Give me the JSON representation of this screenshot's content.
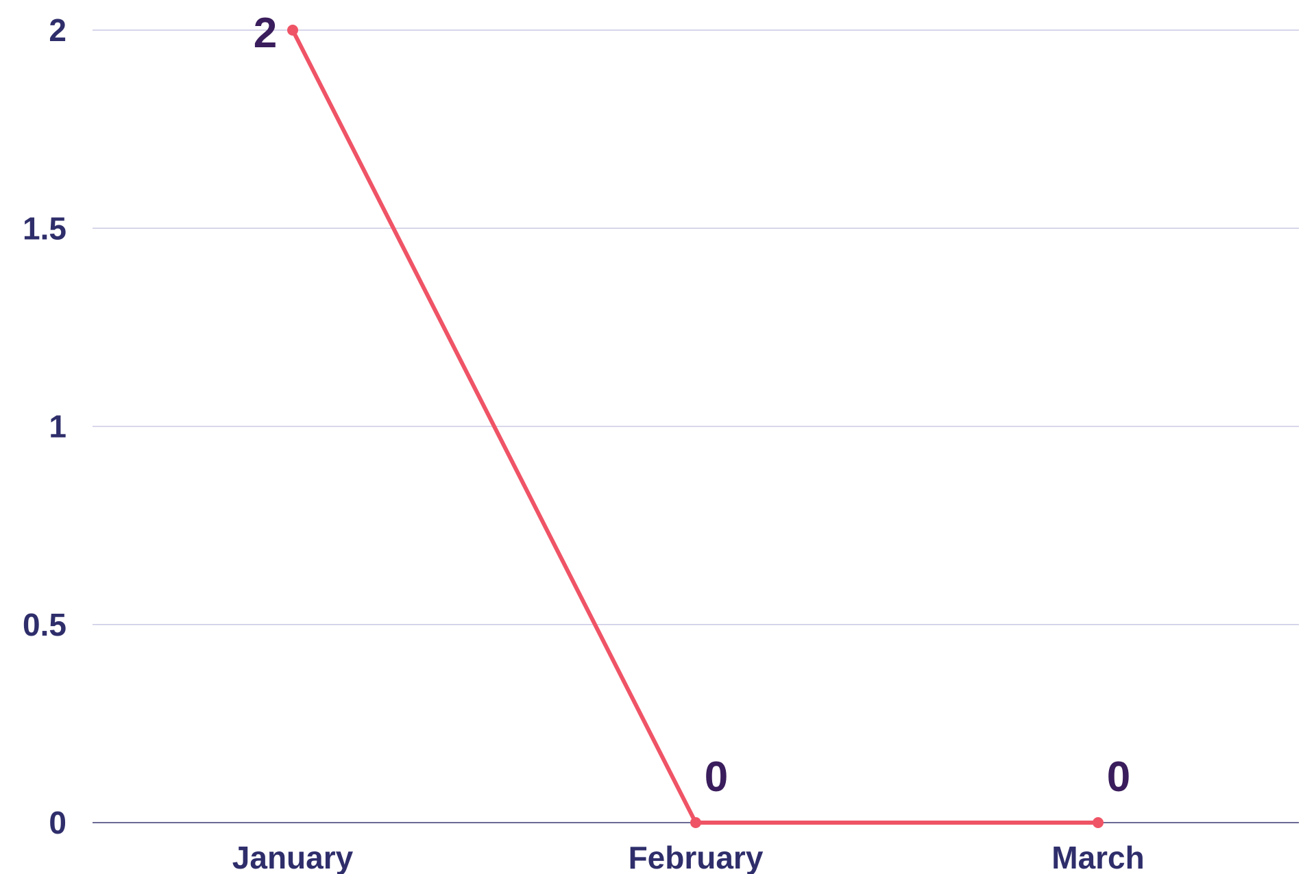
{
  "chart_data": {
    "type": "line",
    "categories": [
      "January",
      "February",
      "March"
    ],
    "series": [
      {
        "values": [
          2,
          0,
          0
        ]
      }
    ],
    "data_labels": [
      "2",
      "0",
      "0"
    ],
    "y_ticks": [
      "0",
      "0.5",
      "1",
      "1.5",
      "2"
    ],
    "ylim": [
      0,
      2
    ],
    "grid": true,
    "legend": "none",
    "title": "",
    "xlabel": "",
    "ylabel": ""
  },
  "colors": {
    "series": "#ef5466",
    "axis_text": "#2f2e6b",
    "data_label_text": "#3a1d5c",
    "grid": "#c9c8e3"
  }
}
